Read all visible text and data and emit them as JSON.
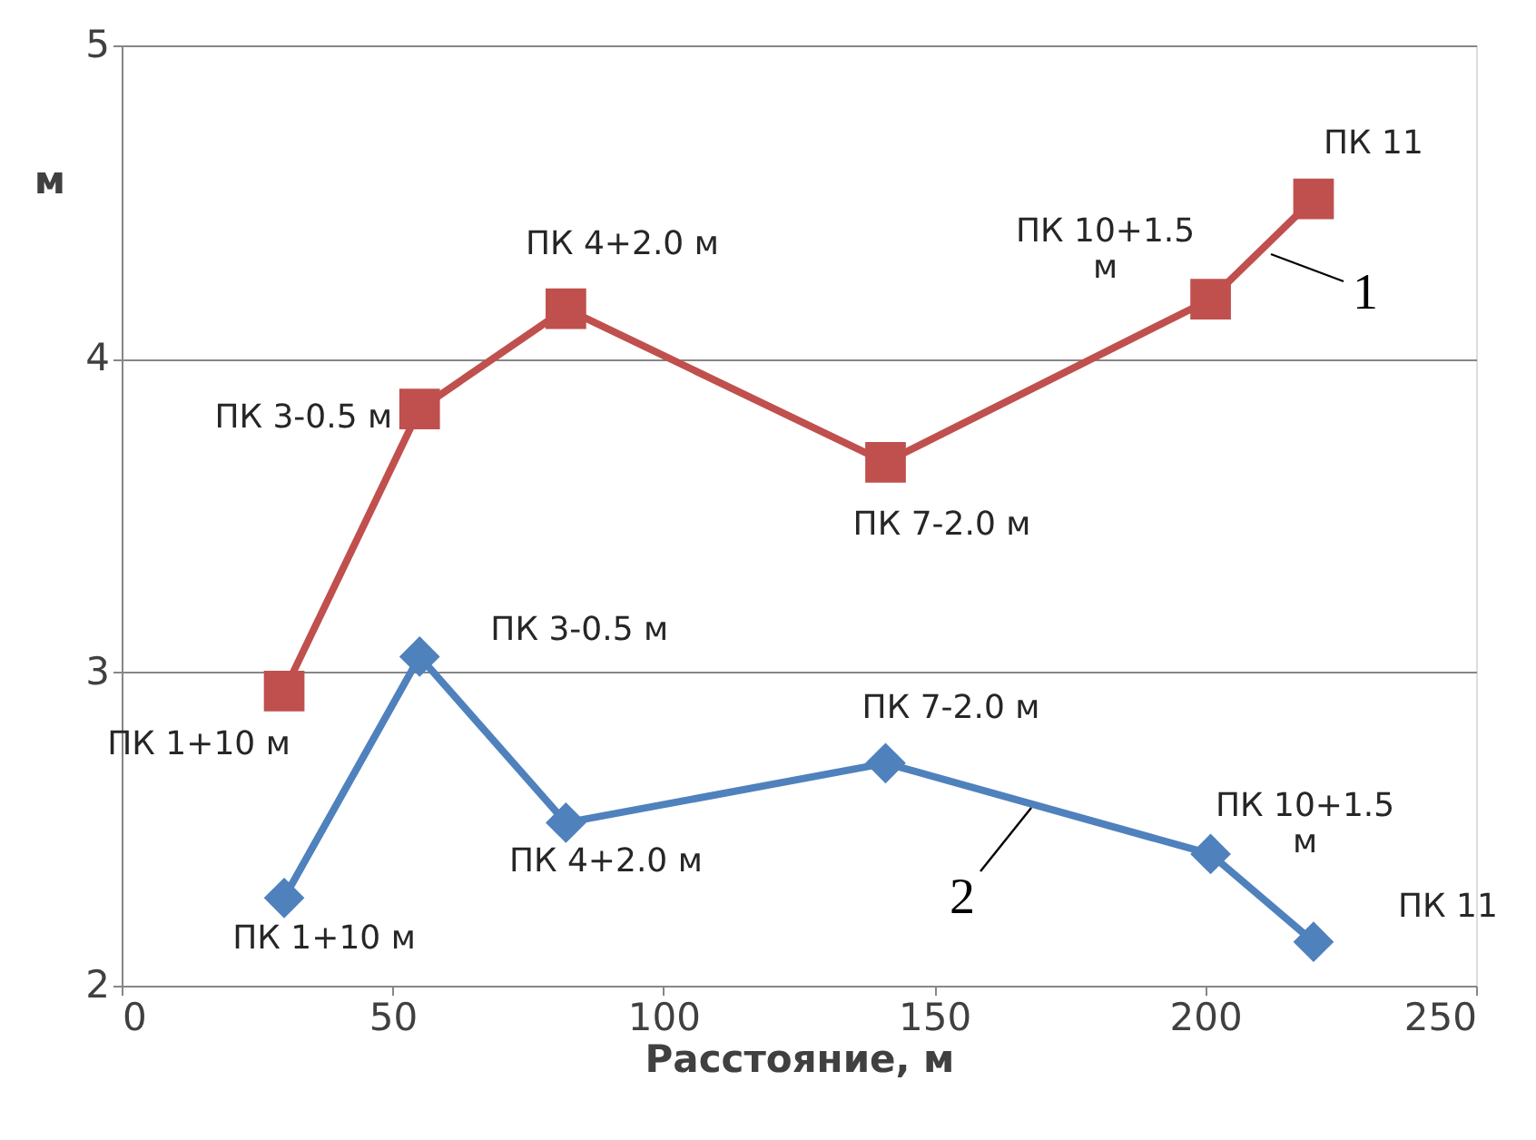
{
  "chart_data": {
    "type": "line",
    "xlabel": "Расстояние, м",
    "ylabel": "м",
    "xlim": [
      0,
      250
    ],
    "xticks": [
      0,
      50,
      100,
      150,
      200,
      250
    ],
    "ylim": [
      2,
      5
    ],
    "yticks": [
      2,
      3,
      4,
      5
    ],
    "grid": "y",
    "x": [
      30,
      55,
      82,
      141,
      201,
      220
    ],
    "series": [
      {
        "name": "1",
        "color": "#c0504d",
        "marker": "square",
        "values": [
          2.94,
          3.84,
          4.16,
          3.67,
          4.19,
          4.51
        ]
      },
      {
        "name": "2",
        "color": "#4f81bd",
        "marker": "diamond",
        "values": [
          2.28,
          3.05,
          2.52,
          2.71,
          2.42,
          2.14
        ]
      }
    ],
    "annotations": [
      {
        "text": "ПК 1+10 м",
        "x": 30,
        "y": 2.94
      },
      {
        "text": "ПК 3-0.5 м",
        "x": 55,
        "y": 3.84
      },
      {
        "text": "ПК 4+2.0 м",
        "x": 82,
        "y": 4.16
      },
      {
        "text": "ПК 7-2.0 м",
        "x": 141,
        "y": 3.67
      },
      {
        "text": "ПК 10+1.5\nм",
        "x": 201,
        "y": 4.19
      },
      {
        "text": "ПК 11",
        "x": 220,
        "y": 4.51
      },
      {
        "text": "ПК 1+10 м",
        "x": 30,
        "y": 2.28
      },
      {
        "text": "ПК 3-0.5 м",
        "x": 55,
        "y": 3.05
      },
      {
        "text": "ПК 4+2.0 м",
        "x": 82,
        "y": 2.52
      },
      {
        "text": "ПК 7-2.0 м",
        "x": 141,
        "y": 2.71
      },
      {
        "text": "ПК 10+1.5\nм",
        "x": 201,
        "y": 2.42
      },
      {
        "text": "ПК 11",
        "x": 220,
        "y": 2.14
      }
    ]
  }
}
